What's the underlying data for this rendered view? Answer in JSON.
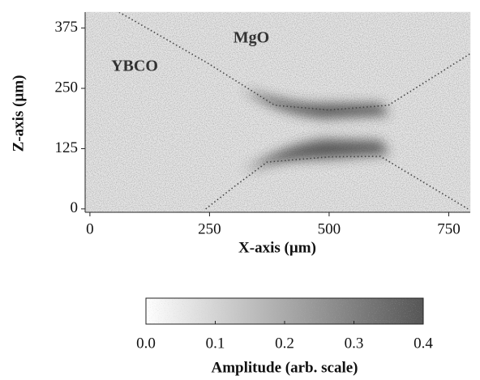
{
  "chart_data": {
    "type": "heatmap",
    "xlabel": "X-axis (µm)",
    "ylabel": "Z-axis (µm)",
    "xlim": [
      -10,
      795
    ],
    "xticks": [
      0,
      250,
      500,
      750
    ],
    "ylim": [
      -7,
      408
    ],
    "yticks": [
      0,
      125,
      250,
      375
    ],
    "annotations": [
      "MgO",
      "YBCO"
    ],
    "lines": [
      {
        "x": [
          61,
          250,
          386,
          500,
          624,
          795
        ],
        "y": [
          408,
          300,
          215,
          205,
          215,
          322
        ]
      },
      {
        "x": [
          242,
          300,
          370,
          500,
          607,
          790
        ],
        "y": [
          0,
          45,
          97,
          108,
          109,
          0
        ]
      }
    ],
    "colorbar": {
      "label": "Amplitude (arb. scale)",
      "clim": [
        0,
        0.4
      ],
      "colors": [
        "#ffffff",
        "#555555"
      ],
      "ticks": [
        {
          "value": 0,
          "label": "0.0"
        },
        0.1,
        0.2,
        0.3,
        0.4
      ]
    }
  }
}
